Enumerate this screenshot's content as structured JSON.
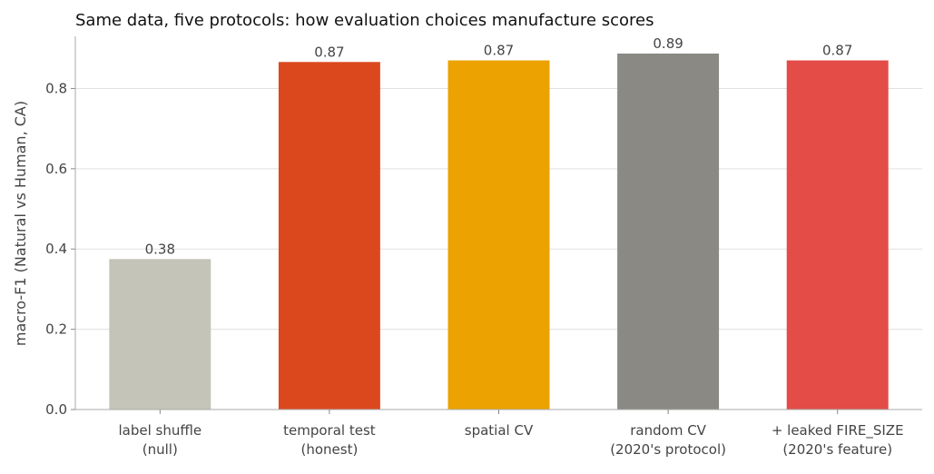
{
  "chart_data": {
    "type": "bar",
    "title": "Same data, five protocols: how evaluation choices manufacture scores",
    "xlabel": "",
    "ylabel": "macro-F1 (Natural vs Human, CA)",
    "ylim": [
      0,
      0.93
    ],
    "yticks": [
      "0.0",
      "0.2",
      "0.4",
      "0.6",
      "0.8"
    ],
    "ytick_values": [
      0,
      0.2,
      0.4,
      0.6,
      0.8
    ],
    "grid": "horizontal",
    "categories": [
      [
        "label shuffle",
        "(null)"
      ],
      [
        "temporal test",
        "(honest)"
      ],
      [
        "spatial CV"
      ],
      [
        "random CV",
        "(2020's protocol)"
      ],
      [
        "+ leaked FIRE_SIZE",
        "(2020's feature)"
      ]
    ],
    "values": [
      0.375,
      0.866,
      0.87,
      0.887,
      0.87
    ],
    "value_labels": [
      "0.38",
      "0.87",
      "0.87",
      "0.89",
      "0.87"
    ],
    "colors": [
      "#c4c4b8",
      "#dc481e",
      "#eca200",
      "#8a8983",
      "#e34c47"
    ]
  }
}
